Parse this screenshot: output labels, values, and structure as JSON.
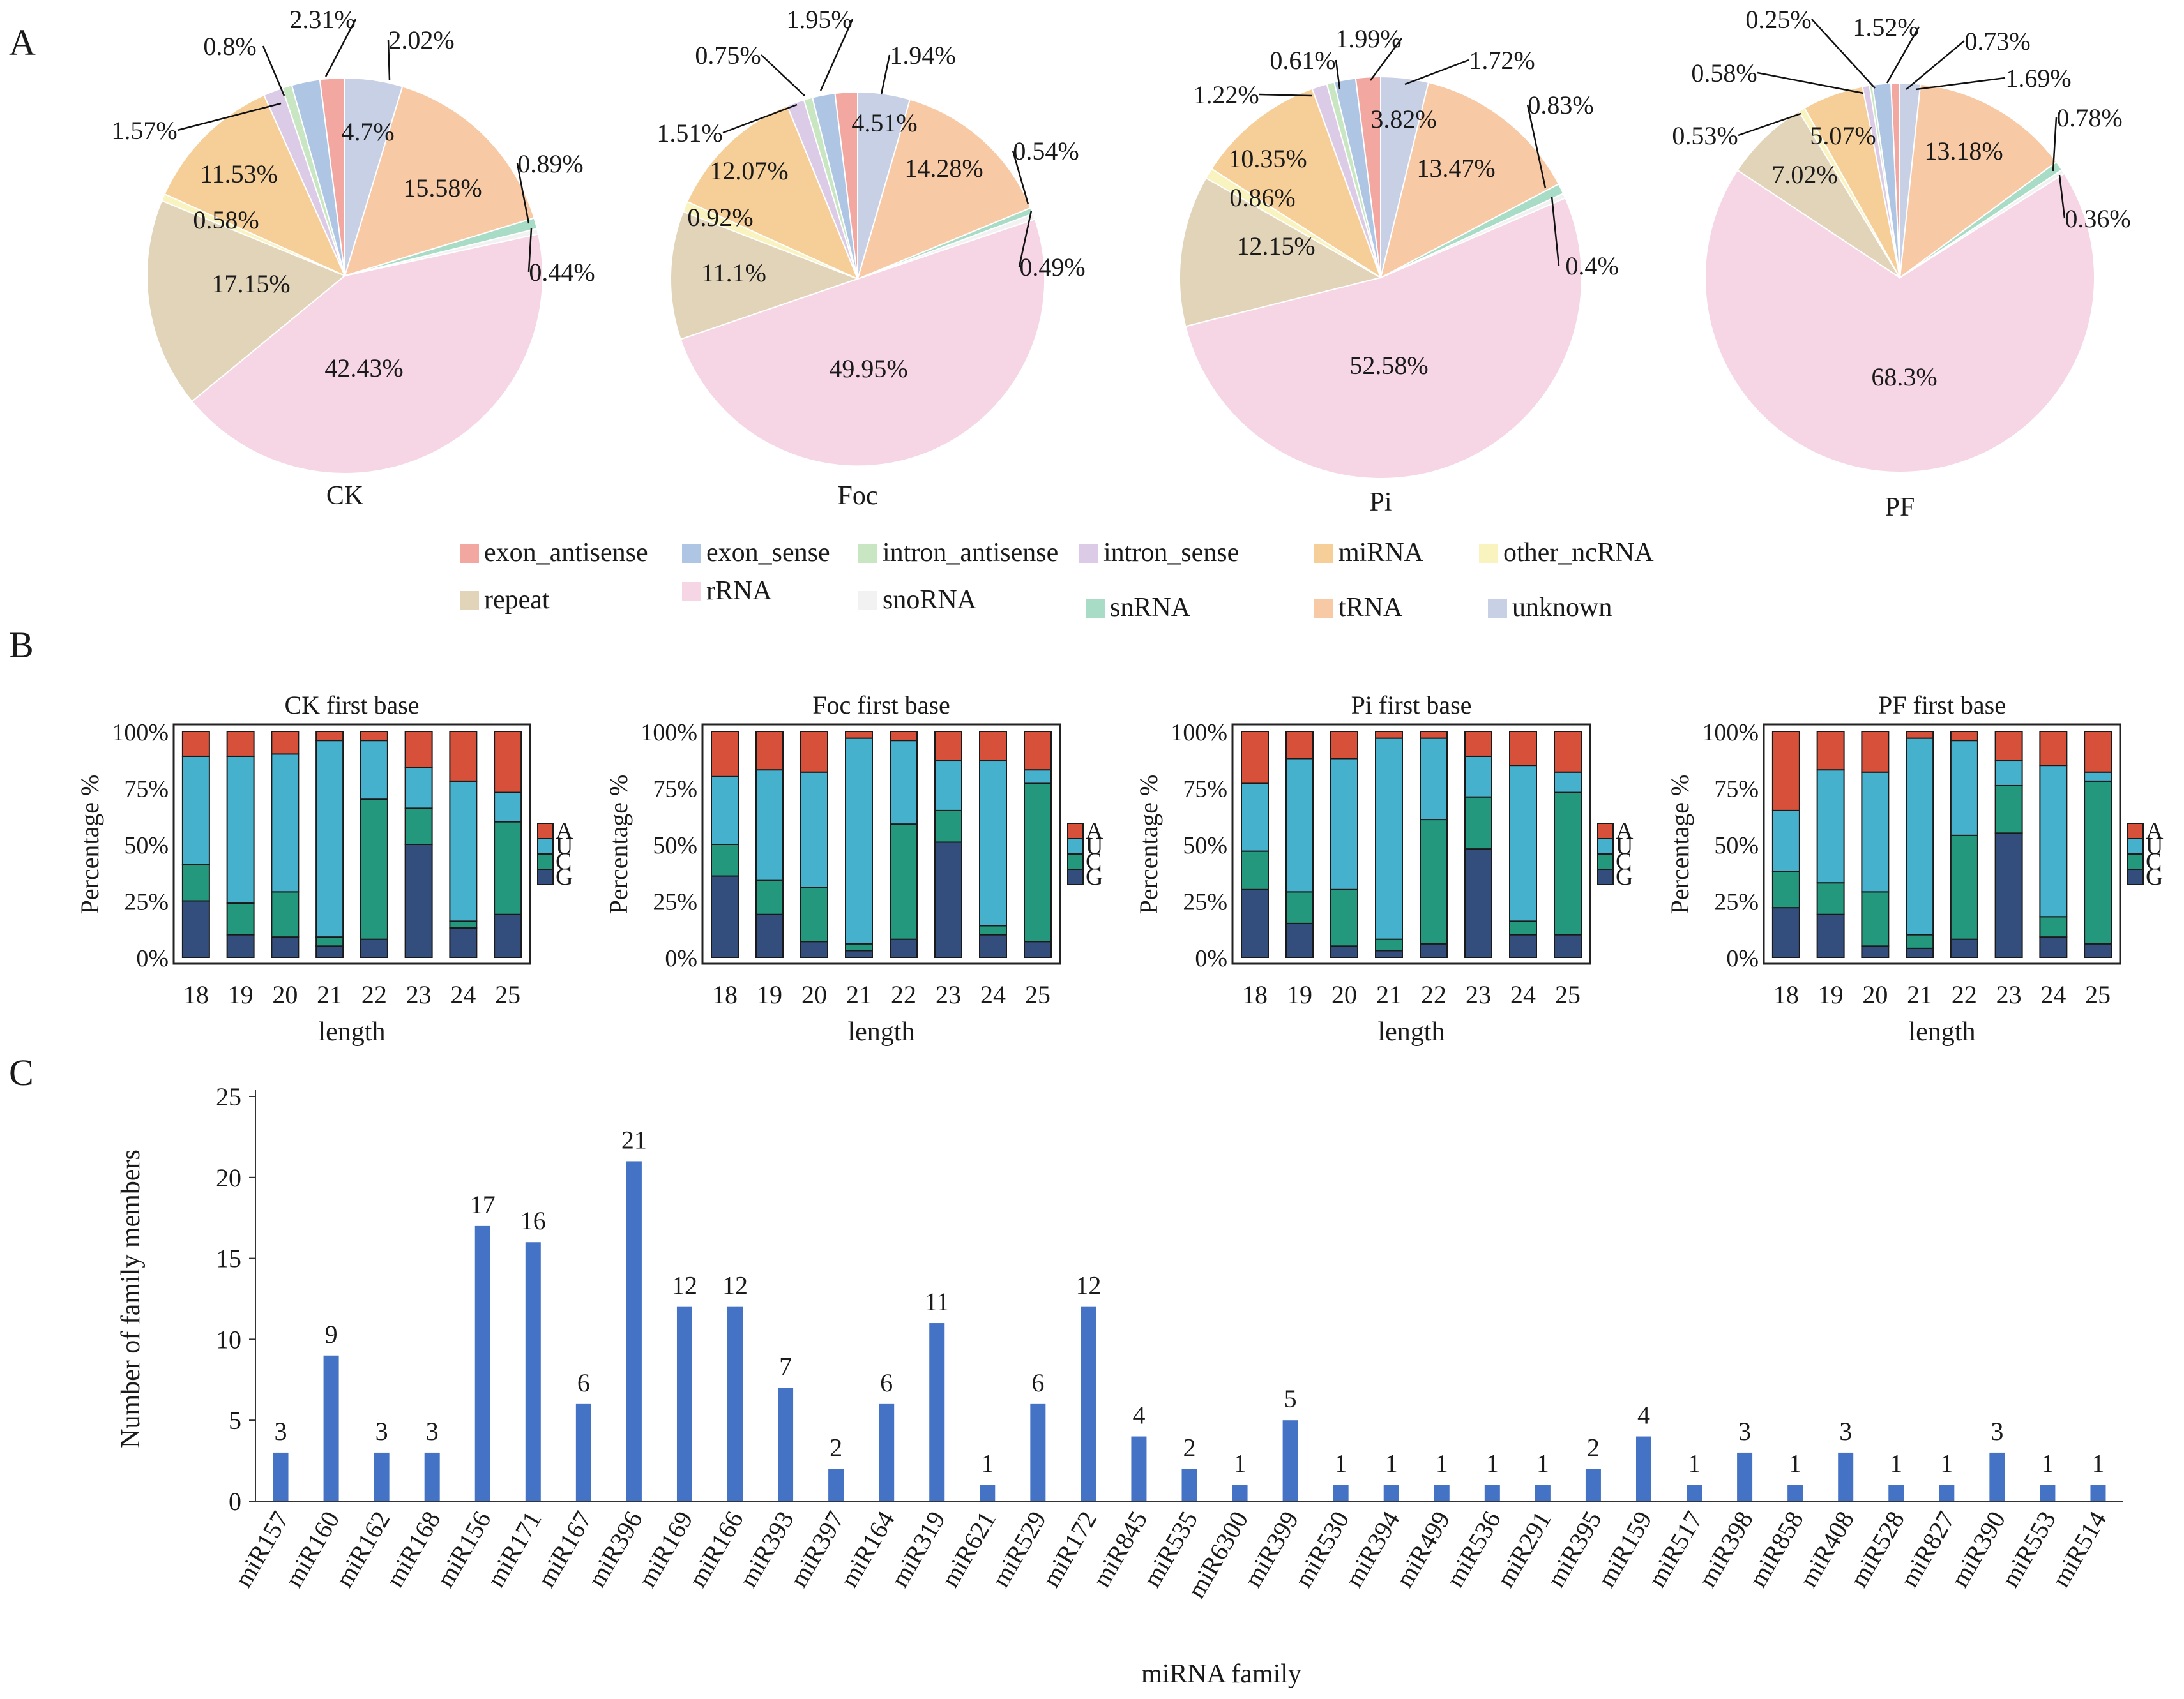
{
  "panel_labels": {
    "a": "A",
    "b": "B",
    "c": "C"
  },
  "colors": {
    "exon_antisense": "#f2a8a1",
    "exon_sense": "#aec6e3",
    "intron_antisense": "#c7e6c1",
    "intron_sense": "#dccbe6",
    "miRNA": "#f6cf98",
    "other_ncRNA": "#f8f3bf",
    "repeat": "#e2d4b8",
    "rRNA": "#f6d5e5",
    "snoRNA": "#f2f2f2",
    "snRNA": "#a9dcc7",
    "tRNA": "#f7c9a5",
    "unknown": "#c8d0e6",
    "base_A": "#d7503a",
    "base_U": "#45b1cd",
    "base_C": "#23987d",
    "base_G": "#334e7c",
    "bar_blue": "#4472c4"
  },
  "legend": {
    "items": [
      {
        "key": "exon_antisense",
        "label": "exon_antisense"
      },
      {
        "key": "exon_sense",
        "label": "exon_sense"
      },
      {
        "key": "intron_antisense",
        "label": "intron_antisense"
      },
      {
        "key": "intron_sense",
        "label": "intron_sense"
      },
      {
        "key": "miRNA",
        "label": "miRNA"
      },
      {
        "key": "other_ncRNA",
        "label": "other_ncRNA"
      },
      {
        "key": "repeat",
        "label": "repeat"
      },
      {
        "key": "rRNA",
        "label": "rRNA"
      },
      {
        "key": "snoRNA",
        "label": "snoRNA"
      },
      {
        "key": "snRNA",
        "label": "snRNA"
      },
      {
        "key": "tRNA",
        "label": "tRNA"
      },
      {
        "key": "unknown",
        "label": "unknown"
      }
    ]
  },
  "chart_data": [
    {
      "type": "pie",
      "title": "CK",
      "categories": [
        "exon_antisense",
        "exon_sense",
        "intron_antisense",
        "intron_sense",
        "miRNA",
        "other_ncRNA",
        "repeat",
        "rRNA",
        "snoRNA",
        "snRNA",
        "tRNA",
        "unknown"
      ],
      "values": [
        2.02,
        2.31,
        0.8,
        1.57,
        11.53,
        0.58,
        17.15,
        42.43,
        0.44,
        0.89,
        15.58,
        4.7
      ],
      "labels": [
        "2.02%",
        "2.31%",
        "0.8%",
        "1.57%",
        "11.53%",
        "0.58%",
        "17.15%",
        "42.43%",
        "0.44%",
        "0.89%",
        "15.58%",
        "4.7%"
      ]
    },
    {
      "type": "pie",
      "title": "Foc",
      "categories": [
        "exon_antisense",
        "exon_sense",
        "intron_antisense",
        "intron_sense",
        "miRNA",
        "other_ncRNA",
        "repeat",
        "rRNA",
        "snoRNA",
        "snRNA",
        "tRNA",
        "unknown"
      ],
      "values": [
        1.94,
        1.95,
        0.75,
        1.51,
        12.07,
        0.92,
        11.1,
        49.95,
        0.49,
        0.54,
        14.28,
        4.51
      ],
      "labels": [
        "1.94%",
        "1.95%",
        "0.75%",
        "1.51%",
        "12.07%",
        "0.92%",
        "11.1%",
        "49.95%",
        "0.49%",
        "0.54%",
        "14.28%",
        "4.51%"
      ]
    },
    {
      "type": "pie",
      "title": "Pi",
      "categories": [
        "exon_antisense",
        "exon_sense",
        "intron_antisense",
        "intron_sense",
        "miRNA",
        "other_ncRNA",
        "repeat",
        "rRNA",
        "snoRNA",
        "snRNA",
        "tRNA",
        "unknown"
      ],
      "values": [
        1.99,
        1.72,
        0.61,
        1.22,
        10.35,
        0.86,
        12.15,
        52.58,
        0.4,
        0.83,
        13.47,
        3.82
      ],
      "labels": [
        "1.99%",
        "1.72%",
        "0.61%",
        "1.22%",
        "10.35%",
        "0.86%",
        "12.15%",
        "52.58%",
        "0.4%",
        "0.83%",
        "13.47%",
        "3.82%"
      ]
    },
    {
      "type": "pie",
      "title": "PF",
      "categories": [
        "exon_antisense",
        "exon_sense",
        "intron_antisense",
        "intron_sense",
        "miRNA",
        "other_ncRNA",
        "repeat",
        "rRNA",
        "snoRNA",
        "snRNA",
        "tRNA",
        "unknown"
      ],
      "values": [
        0.73,
        1.52,
        0.25,
        0.58,
        5.07,
        0.53,
        7.02,
        68.3,
        0.36,
        0.78,
        13.18,
        1.69
      ],
      "labels": [
        "0.73%",
        "1.52%",
        "0.25%",
        "0.58%",
        "5.07%",
        "0.53%",
        "7.02%",
        "68.3%",
        "0.36%",
        "0.78%",
        "13.18%",
        "1.69%"
      ]
    },
    {
      "type": "bar",
      "stacked": true,
      "title": "CK first base",
      "xlabel": "length",
      "ylabel": "Percentage %",
      "categories": [
        "18",
        "19",
        "20",
        "21",
        "22",
        "23",
        "24",
        "25"
      ],
      "yticks": [
        "0%",
        "25%",
        "50%",
        "75%",
        "100%"
      ],
      "ylim": [
        0,
        100
      ],
      "legend": [
        "A",
        "U",
        "C",
        "G"
      ],
      "series": [
        {
          "name": "G",
          "values": [
            25,
            10,
            9,
            5,
            8,
            50,
            13,
            19
          ]
        },
        {
          "name": "C",
          "values": [
            16,
            14,
            20,
            4,
            62,
            16,
            3,
            41
          ]
        },
        {
          "name": "U",
          "values": [
            48,
            65,
            61,
            87,
            26,
            18,
            62,
            13
          ]
        },
        {
          "name": "A",
          "values": [
            11,
            11,
            10,
            4,
            4,
            16,
            22,
            27
          ]
        }
      ]
    },
    {
      "type": "bar",
      "stacked": true,
      "title": "Foc first base",
      "xlabel": "length",
      "ylabel": "Percentage %",
      "categories": [
        "18",
        "19",
        "20",
        "21",
        "22",
        "23",
        "24",
        "25"
      ],
      "yticks": [
        "0%",
        "25%",
        "50%",
        "75%",
        "100%"
      ],
      "ylim": [
        0,
        100
      ],
      "legend": [
        "A",
        "U",
        "C",
        "G"
      ],
      "series": [
        {
          "name": "G",
          "values": [
            36,
            19,
            7,
            3,
            8,
            51,
            10,
            7
          ]
        },
        {
          "name": "C",
          "values": [
            14,
            15,
            24,
            3,
            51,
            14,
            4,
            70
          ]
        },
        {
          "name": "U",
          "values": [
            30,
            49,
            51,
            91,
            37,
            22,
            73,
            6
          ]
        },
        {
          "name": "A",
          "values": [
            20,
            17,
            18,
            3,
            4,
            13,
            13,
            17
          ]
        }
      ]
    },
    {
      "type": "bar",
      "stacked": true,
      "title": "Pi first base",
      "xlabel": "length",
      "ylabel": "Percentage %",
      "categories": [
        "18",
        "19",
        "20",
        "21",
        "22",
        "23",
        "24",
        "25"
      ],
      "yticks": [
        "0%",
        "25%",
        "50%",
        "75%",
        "100%"
      ],
      "ylim": [
        0,
        100
      ],
      "legend": [
        "A",
        "U",
        "C",
        "G"
      ],
      "series": [
        {
          "name": "G",
          "values": [
            30,
            15,
            5,
            3,
            6,
            48,
            10,
            10
          ]
        },
        {
          "name": "C",
          "values": [
            17,
            14,
            25,
            5,
            55,
            23,
            6,
            63
          ]
        },
        {
          "name": "U",
          "values": [
            30,
            59,
            58,
            89,
            36,
            18,
            69,
            9
          ]
        },
        {
          "name": "A",
          "values": [
            23,
            12,
            12,
            3,
            3,
            11,
            15,
            18
          ]
        }
      ]
    },
    {
      "type": "bar",
      "stacked": true,
      "title": "PF first base",
      "xlabel": "length",
      "ylabel": "Percentage %",
      "categories": [
        "18",
        "19",
        "20",
        "21",
        "22",
        "23",
        "24",
        "25"
      ],
      "yticks": [
        "0%",
        "25%",
        "50%",
        "75%",
        "100%"
      ],
      "ylim": [
        0,
        100
      ],
      "legend": [
        "A",
        "U",
        "C",
        "G"
      ],
      "series": [
        {
          "name": "G",
          "values": [
            22,
            19,
            5,
            4,
            8,
            55,
            9,
            6
          ]
        },
        {
          "name": "C",
          "values": [
            16,
            14,
            24,
            6,
            46,
            21,
            9,
            72
          ]
        },
        {
          "name": "U",
          "values": [
            27,
            50,
            53,
            87,
            42,
            11,
            67,
            4
          ]
        },
        {
          "name": "A",
          "values": [
            35,
            17,
            18,
            3,
            4,
            13,
            15,
            18
          ]
        }
      ]
    },
    {
      "type": "bar",
      "title": "",
      "xlabel": "miRNA family",
      "ylabel": "Number of family members",
      "ylim": [
        0,
        25
      ],
      "yticks": [
        "0",
        "5",
        "10",
        "15",
        "20",
        "25"
      ],
      "categories": [
        "miR157",
        "miR160",
        "miR162",
        "miR168",
        "miR156",
        "miR171",
        "miR167",
        "miR396",
        "miR169",
        "miR166",
        "miR393",
        "miR397",
        "miR164",
        "miR319",
        "miR621",
        "miR529",
        "miR172",
        "miR845",
        "miR535",
        "miR6300",
        "miR399",
        "miR530",
        "miR394",
        "miR499",
        "miR536",
        "miR291",
        "miR395",
        "miR159",
        "miR517",
        "miR398",
        "miR858",
        "miR408",
        "miR528",
        "miR827",
        "miR390",
        "miR553",
        "miR514"
      ],
      "values": [
        3,
        9,
        3,
        3,
        17,
        16,
        6,
        21,
        12,
        12,
        7,
        2,
        6,
        11,
        1,
        6,
        12,
        4,
        2,
        1,
        5,
        1,
        1,
        1,
        1,
        1,
        2,
        4,
        1,
        3,
        1,
        3,
        1,
        1,
        3,
        1,
        1
      ],
      "value_labels": [
        "3",
        "9",
        "3",
        "3",
        "17",
        "16",
        "6",
        "21",
        "12",
        "12",
        "7",
        "2",
        "6",
        "11",
        "1",
        "6",
        "12",
        "4",
        "2",
        "1",
        "5",
        "1",
        "1",
        "1",
        "1",
        "1",
        "2",
        "4",
        "1",
        "3",
        "1",
        "3",
        "1",
        "1",
        "3",
        "1",
        "1"
      ]
    }
  ]
}
